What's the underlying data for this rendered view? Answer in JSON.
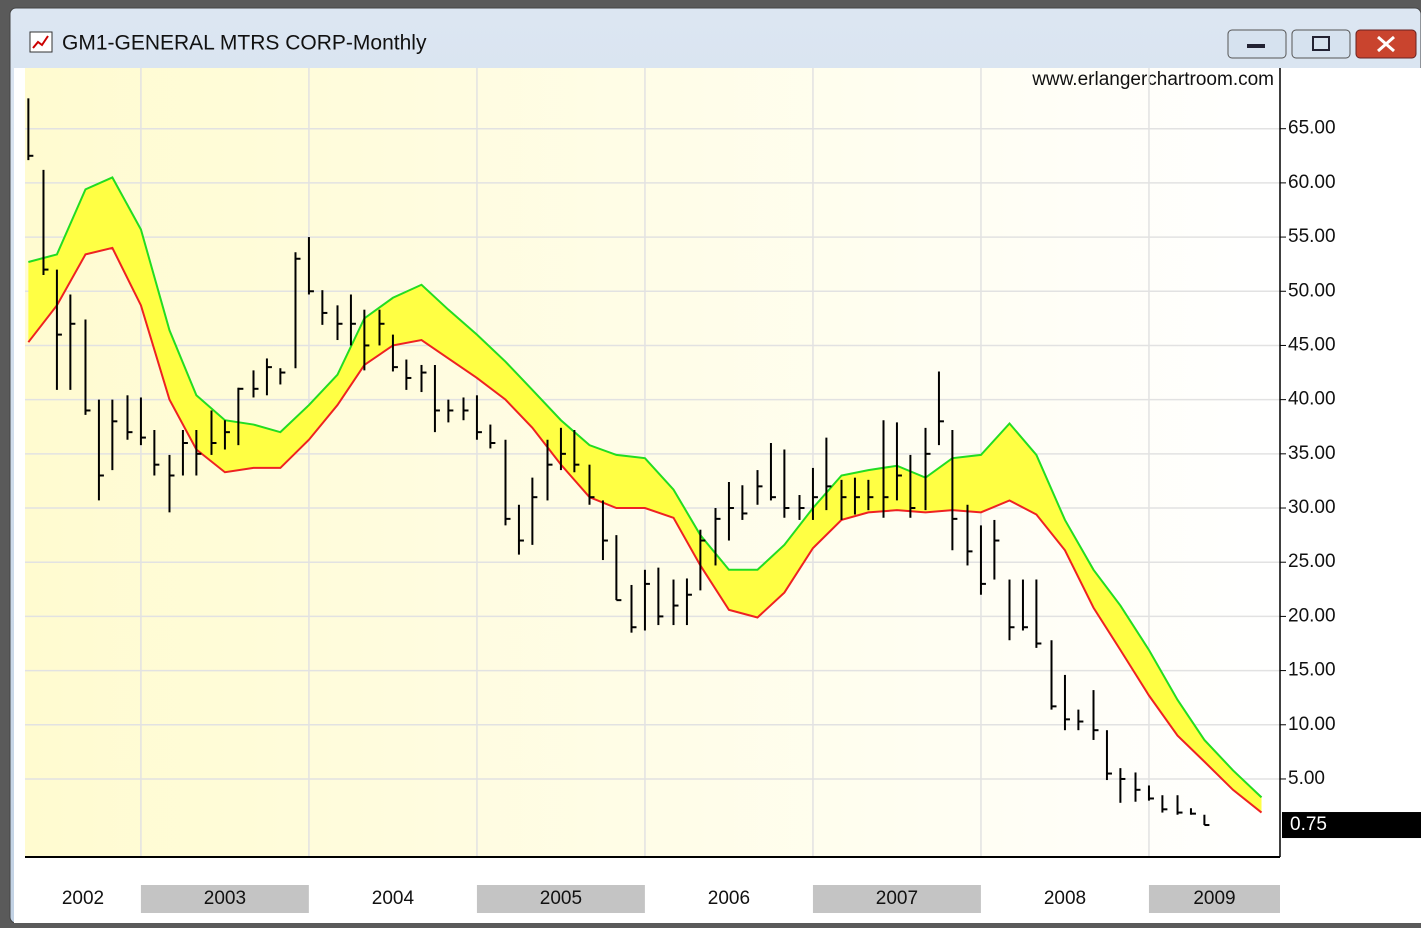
{
  "window": {
    "title": "GM1-GENERAL MTRS CORP-Monthly"
  },
  "chart_data": {
    "type": "ohlc",
    "watermark": "www.erlangerchartroom.com",
    "x": [
      2002.33,
      2002.42,
      2002.5,
      2002.58,
      2002.67,
      2002.75,
      2002.83,
      2002.92,
      2003.0,
      2003.08,
      2003.17,
      2003.25,
      2003.33,
      2003.42,
      2003.5,
      2003.58,
      2003.67,
      2003.75,
      2003.83,
      2003.92,
      2004.0,
      2004.08,
      2004.17,
      2004.25,
      2004.33,
      2004.42,
      2004.5,
      2004.58,
      2004.67,
      2004.75,
      2004.83,
      2004.92,
      2005.0,
      2005.08,
      2005.17,
      2005.25,
      2005.33,
      2005.42,
      2005.5,
      2005.58,
      2005.67,
      2005.75,
      2005.83,
      2005.92,
      2006.0,
      2006.08,
      2006.17,
      2006.25,
      2006.33,
      2006.42,
      2006.5,
      2006.58,
      2006.67,
      2006.75,
      2006.83,
      2006.92,
      2007.0,
      2007.08,
      2007.17,
      2007.25,
      2007.33,
      2007.42,
      2007.5,
      2007.58,
      2007.67,
      2007.75,
      2007.83,
      2007.92,
      2008.0,
      2008.08,
      2008.17,
      2008.25,
      2008.33,
      2008.42,
      2008.5,
      2008.58,
      2008.67,
      2008.75,
      2008.83,
      2008.92,
      2009.0,
      2009.08,
      2009.17,
      2009.25,
      2009.33
    ],
    "high": [
      67.8,
      61.2,
      52,
      49.7,
      47.4,
      40,
      40,
      40.4,
      40.2,
      37.2,
      34.9,
      37.2,
      37.2,
      39,
      38.1,
      41.1,
      42.7,
      43.8,
      42.9,
      53.6,
      55,
      50.1,
      48.7,
      49.7,
      48.3,
      48.3,
      46,
      43.7,
      43.2,
      43.2,
      40,
      40.2,
      40.4,
      37.7,
      36.3,
      30.3,
      32.8,
      36.3,
      37.4,
      37.2,
      34,
      30.7,
      27.5,
      22.9,
      24.3,
      24.5,
      23.4,
      23.5,
      28,
      30,
      32.4,
      32.1,
      33.5,
      36,
      35.4,
      31.2,
      33.7,
      36.5,
      32.6,
      32.8,
      32.6,
      38.1,
      37.9,
      34.9,
      37.4,
      42.6,
      37.2,
      30.3,
      28.4,
      28.9,
      23.4,
      23.4,
      23.4,
      17.8,
      14.6,
      11.4,
      13.2,
      9.5,
      6,
      5.6,
      4.4,
      3.5,
      3.5,
      2.3,
      1.7
    ],
    "low": [
      62.1,
      51.5,
      40.9,
      40.9,
      38.6,
      30.7,
      33.5,
      36.3,
      35.8,
      33,
      29.6,
      33,
      33,
      34.9,
      35.4,
      35.8,
      40.2,
      40.4,
      41.4,
      42.9,
      49.7,
      46.9,
      45.5,
      45,
      42.7,
      45,
      42.6,
      40.9,
      40.7,
      37,
      37.9,
      38.1,
      36.3,
      35.5,
      28.4,
      25.7,
      26.6,
      30.7,
      33.5,
      33.3,
      30.3,
      25.2,
      21.5,
      18.5,
      18.7,
      19.2,
      19.2,
      19.2,
      22.4,
      24.7,
      27,
      28.9,
      30.3,
      30.7,
      29.1,
      28.9,
      28.9,
      29.8,
      28.9,
      29.4,
      29.8,
      29.1,
      30.7,
      29.1,
      29.8,
      35.8,
      26.1,
      24.7,
      22,
      23.4,
      17.8,
      18.7,
      17.1,
      11.4,
      9.5,
      9.5,
      8.6,
      4.9,
      2.8,
      2.9,
      3,
      1.9,
      1.7,
      1.7,
      0.75
    ],
    "close": [
      62.5,
      52,
      46,
      47,
      39,
      33,
      38,
      37,
      36.5,
      34,
      33,
      36,
      35,
      36,
      37,
      41,
      41,
      43,
      42.5,
      53,
      50,
      48,
      47,
      47,
      45,
      47,
      43,
      42,
      42.5,
      39,
      39,
      39,
      37,
      36,
      29,
      27,
      31,
      34,
      35,
      34,
      31,
      27,
      21.5,
      19,
      23,
      20,
      21,
      22,
      27,
      29,
      30,
      29.5,
      32,
      31,
      30,
      30,
      31,
      32,
      31,
      31,
      31,
      31,
      33,
      30,
      35,
      38,
      29,
      26,
      23,
      27,
      19,
      19,
      17.5,
      11.7,
      10.5,
      10.3,
      9.5,
      5.5,
      5,
      4,
      3.2,
      2.2,
      1.9,
      1.8,
      0.75
    ],
    "bands": {
      "x": [
        2002.33,
        2002.5,
        2002.67,
        2002.83,
        2003.0,
        2003.17,
        2003.33,
        2003.5,
        2003.67,
        2003.83,
        2004.0,
        2004.17,
        2004.33,
        2004.5,
        2004.67,
        2004.83,
        2005.0,
        2005.17,
        2005.33,
        2005.5,
        2005.67,
        2005.83,
        2006.0,
        2006.17,
        2006.33,
        2006.5,
        2006.67,
        2006.83,
        2007.0,
        2007.17,
        2007.33,
        2007.5,
        2007.67,
        2007.83,
        2008.0,
        2008.17,
        2008.33,
        2008.5,
        2008.67,
        2008.83,
        2009.0,
        2009.17,
        2009.33,
        2009.5,
        2009.67
      ],
      "series": [
        {
          "color": "#22dd22",
          "values": [
            52.7,
            53.4,
            59.4,
            60.5,
            55.7,
            46.4,
            40.4,
            38.1,
            37.7,
            37,
            39.5,
            42.3,
            47.5,
            49.4,
            50.6,
            48.3,
            46,
            43.5,
            40.9,
            38.1,
            35.8,
            34.9,
            34.6,
            31.7,
            27.5,
            24.3,
            24.3,
            26.6,
            30,
            33,
            33.5,
            33.9,
            32.8,
            34.6,
            34.9,
            37.8,
            34.9,
            28.9,
            24.3,
            21,
            16.9,
            12.3,
            8.6,
            5.8,
            3.3
          ]
        },
        {
          "color": "#ee2222",
          "values": [
            45.3,
            48.7,
            53.4,
            54,
            48.7,
            40,
            35.4,
            33.3,
            33.7,
            33.7,
            36.3,
            39.5,
            43.2,
            45,
            45.5,
            43.8,
            42,
            40,
            37.4,
            34,
            31,
            30,
            30,
            29.1,
            24.7,
            20.6,
            19.9,
            22.2,
            26.3,
            28.9,
            29.6,
            29.8,
            29.6,
            29.8,
            29.6,
            30.7,
            29.4,
            26.1,
            20.8,
            16.9,
            12.7,
            9,
            6.6,
            4,
            1.9
          ]
        }
      ],
      "fill": "#ffff44"
    },
    "xlim": [
      2002.31,
      2009.78
    ],
    "xticks": [
      2002,
      2003,
      2004,
      2005,
      2006,
      2007,
      2008,
      2009
    ],
    "ylim": [
      -2.2,
      70.6
    ],
    "yticks": [
      {
        "value": 5,
        "label": "5.00"
      },
      {
        "value": 10,
        "label": "10.00"
      },
      {
        "value": 15,
        "label": "15.00"
      },
      {
        "value": 20,
        "label": "20.00"
      },
      {
        "value": 25,
        "label": "25.00"
      },
      {
        "value": 30,
        "label": "30.00"
      },
      {
        "value": 35,
        "label": "35.00"
      },
      {
        "value": 40,
        "label": "40.00"
      },
      {
        "value": 45,
        "label": "45.00"
      },
      {
        "value": 50,
        "label": "50.00"
      },
      {
        "value": 55,
        "label": "55.00"
      },
      {
        "value": 60,
        "label": "60.00"
      },
      {
        "value": 65,
        "label": "65.00"
      }
    ],
    "last_price": {
      "value": 0.75,
      "label": "0.75"
    },
    "grid": true
  }
}
